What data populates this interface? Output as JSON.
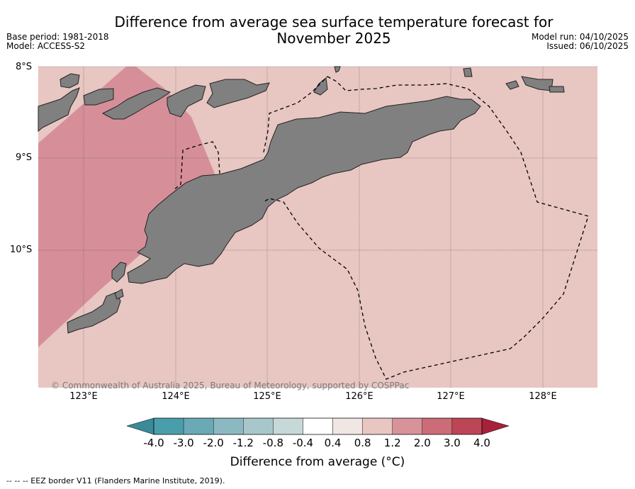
{
  "title": {
    "line1": "Difference from average sea surface temperature forecast for",
    "line2": "November 2025"
  },
  "meta_left": {
    "base_period": "Base period: 1981-2018",
    "model": "Model: ACCESS-S2"
  },
  "meta_right": {
    "model_run": "Model run: 04/10/2025",
    "issued": "Issued: 06/10/2025"
  },
  "axes": {
    "lat_labels": [
      "8°S",
      "9°S",
      "10°S"
    ],
    "lon_labels": [
      "123°E",
      "124°E",
      "125°E",
      "126°E",
      "127°E",
      "128°E"
    ]
  },
  "copyright": "© Commonwealth of Australia 2025, Bureau of Meteorology, supported by COSPPac",
  "colorbar": {
    "labels": [
      "-4.0",
      "-3.0",
      "-2.0",
      "-1.2",
      "-0.8",
      "-0.4",
      "0.4",
      "0.8",
      "1.2",
      "2.0",
      "3.0",
      "4.0"
    ],
    "colors": [
      "#4a9eab",
      "#6aaab6",
      "#8cb8c2",
      "#a8c7cb",
      "#c7d8d8",
      "#ffffff",
      "#f0e6e4",
      "#e8c6c2",
      "#d8929a",
      "#cc6c76",
      "#bd4656"
    ],
    "under_color": "#3a8a98",
    "over_color": "#a8203a",
    "title": "Difference from average (°C)"
  },
  "map_colors": {
    "ocean_base": "#e8c6c2",
    "warm_anomaly": "#d68f98",
    "land": "#808080",
    "grid": "#555555"
  },
  "footnote": "--  --  -- EEZ border V11 (Flanders Marine Institute, 2019)."
}
